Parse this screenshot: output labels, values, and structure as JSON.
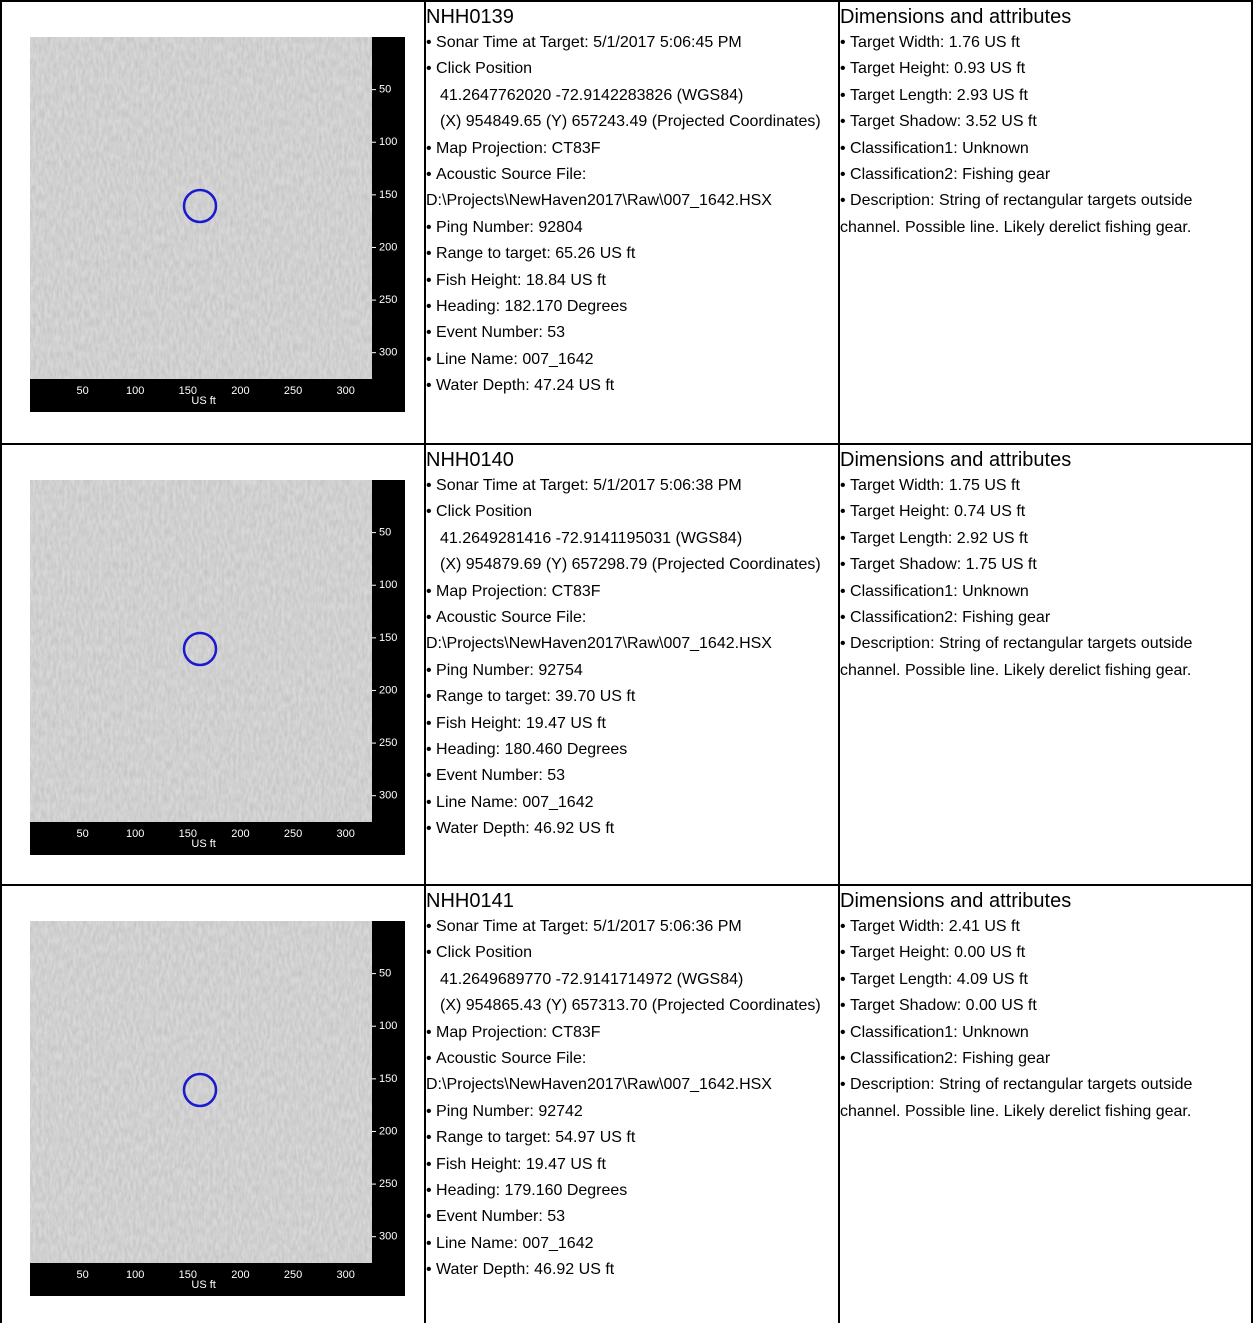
{
  "sonar_axis": {
    "x_ticks": [
      50,
      100,
      150,
      200,
      250,
      300
    ],
    "y_ticks": [
      50,
      100,
      150,
      200,
      250,
      300
    ],
    "x_label": "US ft"
  },
  "records": [
    {
      "id": "NHH0139",
      "details": [
        "Sonar Time at Target: 5/1/2017 5:06:45 PM",
        {
          "label": "Click Position",
          "indented_lines": [
            "41.2647762020 -72.9142283826 (WGS84)",
            "(X) 954849.65 (Y) 657243.49 (Projected Coordinates)"
          ]
        },
        "Map Projection: CT83F",
        {
          "label": "Acoustic Source File:",
          "continuation": [
            "D:\\Projects\\NewHaven2017\\Raw\\007_1642.HSX"
          ]
        },
        "Ping Number: 92804",
        "Range to target: 65.26 US ft",
        "Fish Height: 18.84 US ft",
        "Heading: 182.170 Degrees",
        "Event Number: 53",
        "Line Name: 007_1642",
        "Water Depth: 47.24 US ft"
      ],
      "dimensions_title": "Dimensions and attributes",
      "attributes": [
        "Target Width: 1.76 US ft",
        "Target Height: 0.93 US ft",
        "Target Length: 2.93 US ft",
        "Target Shadow: 3.52 US ft",
        "Classification1: Unknown",
        "Classification2: Fishing gear",
        "Description: String of rectangular targets outside channel. Possible line. Likely derelict fishing gear."
      ]
    },
    {
      "id": "NHH0140",
      "details": [
        "Sonar Time at Target: 5/1/2017 5:06:38 PM",
        {
          "label": "Click Position",
          "indented_lines": [
            "41.2649281416 -72.9141195031 (WGS84)",
            "(X) 954879.69 (Y) 657298.79 (Projected Coordinates)"
          ]
        },
        "Map Projection: CT83F",
        {
          "label": "Acoustic Source File:",
          "continuation": [
            "D:\\Projects\\NewHaven2017\\Raw\\007_1642.HSX"
          ]
        },
        "Ping Number: 92754",
        "Range to target: 39.70 US ft",
        "Fish Height: 19.47 US ft",
        "Heading: 180.460 Degrees",
        "Event Number: 53",
        "Line Name: 007_1642",
        "Water Depth: 46.92 US ft"
      ],
      "dimensions_title": "Dimensions and attributes",
      "attributes": [
        "Target Width: 1.75 US ft",
        "Target Height: 0.74 US ft",
        "Target Length: 2.92 US ft",
        "Target Shadow: 1.75 US ft",
        "Classification1: Unknown",
        "Classification2: Fishing gear",
        "Description: String of rectangular targets outside channel. Possible line. Likely derelict fishing gear."
      ]
    },
    {
      "id": "NHH0141",
      "details": [
        "Sonar Time at Target: 5/1/2017 5:06:36 PM",
        {
          "label": "Click Position",
          "indented_lines": [
            "41.2649689770 -72.9141714972 (WGS84)",
            "(X) 954865.43 (Y) 657313.70 (Projected Coordinates)"
          ]
        },
        "Map Projection: CT83F",
        {
          "label": "Acoustic Source File:",
          "continuation": [
            "D:\\Projects\\NewHaven2017\\Raw\\007_1642.HSX"
          ]
        },
        "Ping Number: 92742",
        "Range to target: 54.97 US ft",
        "Fish Height: 19.47 US ft",
        "Heading: 179.160 Degrees",
        "Event Number: 53",
        "Line Name: 007_1642",
        "Water Depth: 46.92 US ft"
      ],
      "dimensions_title": "Dimensions and attributes",
      "attributes": [
        "Target Width: 2.41 US ft",
        "Target Height: 0.00 US ft",
        "Target Length: 4.09 US ft",
        "Target Shadow: 0.00 US ft",
        "Classification1: Unknown",
        "Classification2: Fishing gear",
        "Description: String of rectangular targets outside channel. Possible line. Likely derelict fishing gear."
      ]
    }
  ]
}
